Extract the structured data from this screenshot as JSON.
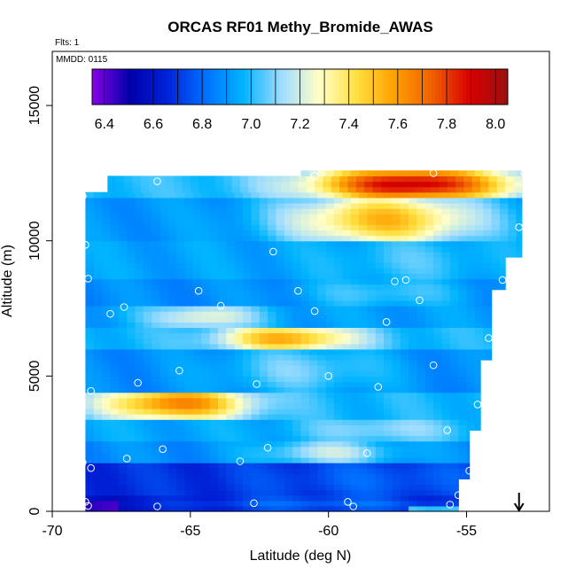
{
  "chart_data": {
    "type": "heatmap",
    "title": "ORCAS RF01 Methy_Bromide_AWAS",
    "subtitle_flights": "Flts: 1",
    "subtitle_date": "MMDD: 0115",
    "xlabel": "Latitude (deg N)",
    "ylabel": "Altitude (m)",
    "xlim": [
      -70,
      -52
    ],
    "ylim": [
      0,
      17000
    ],
    "x_ticks": [
      -70,
      -65,
      -60,
      -55
    ],
    "x_tick_labels": [
      "-70",
      "-65",
      "-60",
      "-55"
    ],
    "y_ticks": [
      0,
      5000,
      10000,
      15000
    ],
    "y_tick_labels": [
      "0",
      "5000",
      "10000",
      "15000"
    ],
    "colorbar": {
      "min": 6.35,
      "max": 8.05,
      "ticks": [
        6.4,
        6.6,
        6.8,
        7.0,
        7.2,
        7.4,
        7.6,
        7.8,
        8.0
      ],
      "tick_labels": [
        "6.4",
        "6.6",
        "6.8",
        "7.0",
        "7.2",
        "7.4",
        "7.6",
        "7.8",
        "8.0"
      ],
      "placement": "top",
      "colors": [
        "#8a00e8",
        "#0000aa",
        "#0022d8",
        "#0070ff",
        "#00b4ff",
        "#9edcff",
        "#ffffc8",
        "#ffe040",
        "#ffa000",
        "#f06000",
        "#d80000",
        "#9a1010"
      ]
    },
    "grid": false,
    "band_edges_m": [
      0,
      600,
      1800,
      2600,
      3500,
      4500,
      6000,
      6800,
      7600,
      8600,
      10000,
      11600,
      12600
    ],
    "domain_lat": [
      -68.8,
      -53
    ],
    "domain_alt": [
      0,
      12600
    ],
    "samples": [
      {
        "lat": -68.7,
        "alt": 200
      },
      {
        "lat": -68.8,
        "alt": 350
      },
      {
        "lat": -66.2,
        "alt": 180
      },
      {
        "lat": -62.7,
        "alt": 300
      },
      {
        "lat": -59.1,
        "alt": 180
      },
      {
        "lat": -59.3,
        "alt": 350
      },
      {
        "lat": -55.6,
        "alt": 250
      },
      {
        "lat": -55.3,
        "alt": 600
      },
      {
        "lat": -54.9,
        "alt": 1500
      },
      {
        "lat": -68.9,
        "alt": 1800
      },
      {
        "lat": -68.6,
        "alt": 1600
      },
      {
        "lat": -67.3,
        "alt": 1950
      },
      {
        "lat": -66.0,
        "alt": 2300
      },
      {
        "lat": -63.2,
        "alt": 1850
      },
      {
        "lat": -62.2,
        "alt": 2350
      },
      {
        "lat": -58.6,
        "alt": 2150
      },
      {
        "lat": -55.7,
        "alt": 3000
      },
      {
        "lat": -54.6,
        "alt": 3950
      },
      {
        "lat": -68.6,
        "alt": 4450
      },
      {
        "lat": -66.9,
        "alt": 4750
      },
      {
        "lat": -65.4,
        "alt": 5200
      },
      {
        "lat": -62.6,
        "alt": 4700
      },
      {
        "lat": -60.0,
        "alt": 5000
      },
      {
        "lat": -58.2,
        "alt": 4600
      },
      {
        "lat": -56.2,
        "alt": 5400
      },
      {
        "lat": -69.0,
        "alt": 6200
      },
      {
        "lat": -54.2,
        "alt": 6400
      },
      {
        "lat": -67.9,
        "alt": 7300
      },
      {
        "lat": -67.4,
        "alt": 7550
      },
      {
        "lat": -64.7,
        "alt": 8150
      },
      {
        "lat": -63.9,
        "alt": 7600
      },
      {
        "lat": -61.1,
        "alt": 8150
      },
      {
        "lat": -60.5,
        "alt": 7400
      },
      {
        "lat": -57.9,
        "alt": 7000
      },
      {
        "lat": -56.7,
        "alt": 7800
      },
      {
        "lat": -57.6,
        "alt": 8500
      },
      {
        "lat": -57.2,
        "alt": 8550
      },
      {
        "lat": -53.7,
        "alt": 8550
      },
      {
        "lat": -53.4,
        "alt": 8550
      },
      {
        "lat": -68.7,
        "alt": 8600
      },
      {
        "lat": -68.8,
        "alt": 9850
      },
      {
        "lat": -62.0,
        "alt": 9600
      },
      {
        "lat": -53.1,
        "alt": 10500
      },
      {
        "lat": -68.9,
        "alt": 11650
      },
      {
        "lat": -66.2,
        "alt": 12200
      },
      {
        "lat": -60.5,
        "alt": 12400
      },
      {
        "lat": -56.2,
        "alt": 12500
      },
      {
        "lat": -52.9,
        "alt": 12500
      }
    ],
    "arrow_marker": {
      "lat": -53.1,
      "direction": "down"
    }
  }
}
